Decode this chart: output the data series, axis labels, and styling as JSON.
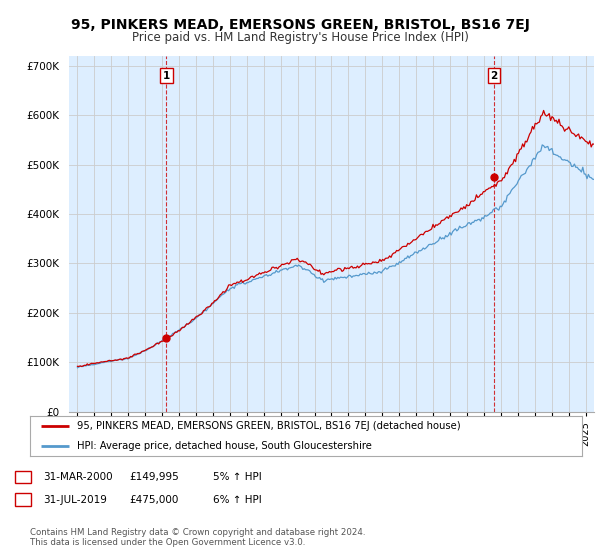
{
  "title": "95, PINKERS MEAD, EMERSONS GREEN, BRISTOL, BS16 7EJ",
  "subtitle": "Price paid vs. HM Land Registry's House Price Index (HPI)",
  "ylim": [
    0,
    720000
  ],
  "yticks": [
    0,
    100000,
    200000,
    300000,
    400000,
    500000,
    600000,
    700000
  ],
  "ytick_labels": [
    "£0",
    "£100K",
    "£200K",
    "£300K",
    "£400K",
    "£500K",
    "£600K",
    "£700K"
  ],
  "xlim_start": 1994.5,
  "xlim_end": 2025.5,
  "sale1_x": 2000.25,
  "sale1_y": 149995,
  "sale2_x": 2019.58,
  "sale2_y": 475000,
  "sale1_label": "1",
  "sale2_label": "2",
  "red_line_color": "#cc0000",
  "blue_line_color": "#5599cc",
  "plot_bg_color": "#ddeeff",
  "annotation_box_color": "#cc0000",
  "legend_label_red": "95, PINKERS MEAD, EMERSONS GREEN, BRISTOL, BS16 7EJ (detached house)",
  "legend_label_blue": "HPI: Average price, detached house, South Gloucestershire",
  "table_row1": [
    "1",
    "31-MAR-2000",
    "£149,995",
    "5% ↑ HPI"
  ],
  "table_row2": [
    "2",
    "31-JUL-2019",
    "£475,000",
    "6% ↑ HPI"
  ],
  "footer": "Contains HM Land Registry data © Crown copyright and database right 2024.\nThis data is licensed under the Open Government Licence v3.0.",
  "grid_color": "#cccccc",
  "background_color": "#ffffff",
  "title_fontsize": 10,
  "subtitle_fontsize": 8.5
}
